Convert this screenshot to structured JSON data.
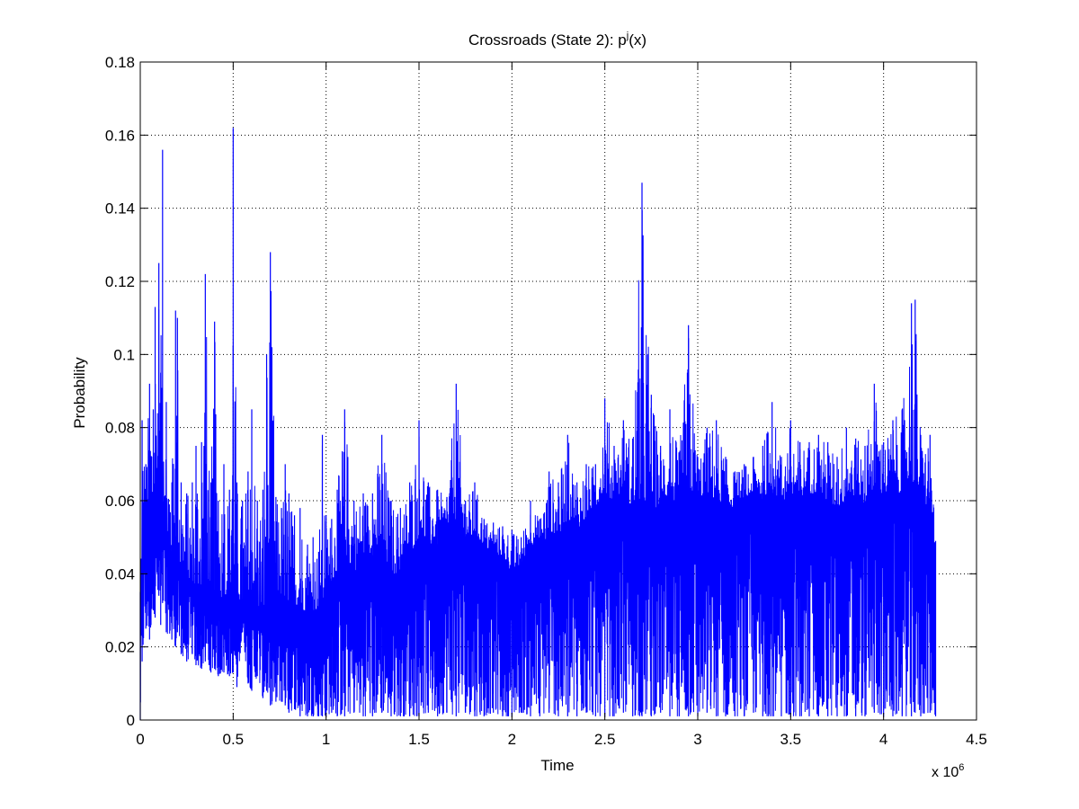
{
  "chart_data": {
    "type": "line",
    "title": "Crossroads (State 2): p",
    "title_superscript": "j",
    "title_suffix": "(x)",
    "xlabel": "Time",
    "ylabel": "Probability",
    "x_multiplier_label": "x 10",
    "x_multiplier_exponent": "6",
    "xlim": [
      0,
      4.5
    ],
    "ylim": [
      0,
      0.18
    ],
    "x_ticks": [
      0,
      0.5,
      1,
      1.5,
      2,
      2.5,
      3,
      3.5,
      4,
      4.5
    ],
    "x_tick_labels": [
      "0",
      "0.5",
      "1",
      "1.5",
      "2",
      "2.5",
      "3",
      "3.5",
      "4",
      "4.5"
    ],
    "y_ticks": [
      0,
      0.02,
      0.04,
      0.06,
      0.08,
      0.1,
      0.12,
      0.14,
      0.16,
      0.18
    ],
    "y_tick_labels": [
      "0",
      "0.02",
      "0.04",
      "0.06",
      "0.08",
      "0.1",
      "0.12",
      "0.14",
      "0.16",
      "0.18"
    ],
    "grid": true,
    "grid_style": "dotted",
    "series": [
      {
        "color": "#0000ff",
        "x_range": [
          0,
          4.28
        ],
        "envelope_x": [
          0,
          0.01,
          0.03,
          0.05,
          0.07,
          0.08,
          0.1,
          0.11,
          0.12,
          0.14,
          0.17,
          0.19,
          0.2,
          0.22,
          0.25,
          0.28,
          0.3,
          0.33,
          0.35,
          0.38,
          0.4,
          0.42,
          0.45,
          0.48,
          0.5,
          0.52,
          0.55,
          0.58,
          0.6,
          0.63,
          0.66,
          0.68,
          0.7,
          0.73,
          0.76,
          0.78,
          0.8,
          0.83,
          0.86,
          0.9,
          0.93,
          0.96,
          0.98,
          1.0,
          1.03,
          1.06,
          1.1,
          1.15,
          1.2,
          1.25,
          1.3,
          1.35,
          1.4,
          1.45,
          1.5,
          1.55,
          1.6,
          1.65,
          1.7,
          1.75,
          1.8,
          1.85,
          1.9,
          1.95,
          2.0,
          2.05,
          2.1,
          2.15,
          2.2,
          2.25,
          2.3,
          2.35,
          2.4,
          2.45,
          2.5,
          2.55,
          2.6,
          2.65,
          2.7,
          2.75,
          2.8,
          2.85,
          2.9,
          2.95,
          3.0,
          3.05,
          3.1,
          3.15,
          3.2,
          3.25,
          3.3,
          3.35,
          3.4,
          3.45,
          3.5,
          3.55,
          3.6,
          3.65,
          3.7,
          3.75,
          3.8,
          3.85,
          3.9,
          3.95,
          4.0,
          4.05,
          4.1,
          4.15,
          4.17,
          4.2,
          4.25,
          4.28
        ],
        "envelope_upper": [
          0.035,
          0.082,
          0.07,
          0.092,
          0.085,
          0.113,
          0.125,
          0.095,
          0.156,
          0.087,
          0.065,
          0.112,
          0.11,
          0.065,
          0.062,
          0.065,
          0.075,
          0.076,
          0.122,
          0.065,
          0.109,
          0.06,
          0.07,
          0.063,
          0.162,
          0.065,
          0.06,
          0.068,
          0.085,
          0.06,
          0.063,
          0.1,
          0.128,
          0.061,
          0.058,
          0.07,
          0.062,
          0.056,
          0.058,
          0.048,
          0.05,
          0.046,
          0.078,
          0.056,
          0.055,
          0.063,
          0.085,
          0.06,
          0.062,
          0.062,
          0.078,
          0.06,
          0.058,
          0.065,
          0.082,
          0.065,
          0.063,
          0.061,
          0.092,
          0.06,
          0.065,
          0.055,
          0.054,
          0.053,
          0.052,
          0.05,
          0.06,
          0.055,
          0.068,
          0.065,
          0.078,
          0.065,
          0.07,
          0.07,
          0.088,
          0.075,
          0.082,
          0.077,
          0.147,
          0.089,
          0.075,
          0.085,
          0.073,
          0.108,
          0.072,
          0.08,
          0.082,
          0.072,
          0.068,
          0.07,
          0.072,
          0.075,
          0.087,
          0.072,
          0.082,
          0.076,
          0.076,
          0.078,
          0.076,
          0.072,
          0.08,
          0.077,
          0.075,
          0.092,
          0.076,
          0.082,
          0.085,
          0.114,
          0.115,
          0.078,
          0.078,
          0.049
        ],
        "envelope_lower": [
          0.0,
          0.016,
          0.025,
          0.022,
          0.03,
          0.028,
          0.034,
          0.026,
          0.032,
          0.024,
          0.022,
          0.02,
          0.024,
          0.018,
          0.016,
          0.018,
          0.015,
          0.014,
          0.016,
          0.013,
          0.014,
          0.012,
          0.013,
          0.012,
          0.013,
          0.009,
          0.024,
          0.01,
          0.008,
          0.012,
          0.006,
          0.008,
          0.004,
          0.005,
          0.005,
          0.004,
          0.002,
          0.003,
          0.001,
          0.001,
          0.001,
          0.001,
          0.001,
          0.001,
          0.002,
          0.001,
          0.001,
          0.002,
          0.001,
          0.001,
          0.002,
          0.001,
          0.001,
          0.001,
          0.001,
          0.002,
          0.001,
          0.002,
          0.001,
          0.002,
          0.001,
          0.001,
          0.002,
          0.001,
          0.001,
          0.002,
          0.001,
          0.001,
          0.002,
          0.001,
          0.001,
          0.001,
          0.002,
          0.001,
          0.001,
          0.001,
          0.002,
          0.001,
          0.001,
          0.001,
          0.002,
          0.001,
          0.001,
          0.001,
          0.001,
          0.002,
          0.001,
          0.001,
          0.001,
          0.001,
          0.002,
          0.001,
          0.001,
          0.001,
          0.001,
          0.001,
          0.001,
          0.001,
          0.001,
          0.001,
          0.001,
          0.001,
          0.001,
          0.002,
          0.001,
          0.001,
          0.001,
          0.001,
          0.002,
          0.001,
          0.002,
          0.001
        ],
        "mid_band": [
          0.02,
          0.05,
          0.055,
          0.06,
          0.058,
          0.057,
          0.06,
          0.058,
          0.06,
          0.05,
          0.045,
          0.05,
          0.045,
          0.04,
          0.038,
          0.036,
          0.036,
          0.035,
          0.036,
          0.034,
          0.035,
          0.034,
          0.033,
          0.033,
          0.036,
          0.033,
          0.032,
          0.031,
          0.03,
          0.031,
          0.03,
          0.031,
          0.03,
          0.03,
          0.03,
          0.03,
          0.032,
          0.03,
          0.03,
          0.03,
          0.03,
          0.03,
          0.03,
          0.035,
          0.038,
          0.04,
          0.045,
          0.04,
          0.045,
          0.045,
          0.046,
          0.04,
          0.04,
          0.045,
          0.05,
          0.048,
          0.048,
          0.05,
          0.055,
          0.05,
          0.05,
          0.048,
          0.045,
          0.045,
          0.04,
          0.042,
          0.048,
          0.048,
          0.05,
          0.05,
          0.055,
          0.052,
          0.055,
          0.058,
          0.06,
          0.06,
          0.06,
          0.058,
          0.06,
          0.058,
          0.058,
          0.06,
          0.058,
          0.06,
          0.06,
          0.06,
          0.06,
          0.058,
          0.058,
          0.058,
          0.06,
          0.06,
          0.062,
          0.06,
          0.06,
          0.06,
          0.062,
          0.062,
          0.06,
          0.058,
          0.06,
          0.06,
          0.058,
          0.062,
          0.062,
          0.062,
          0.062,
          0.065,
          0.065,
          0.06,
          0.058,
          0.045
        ]
      }
    ]
  }
}
